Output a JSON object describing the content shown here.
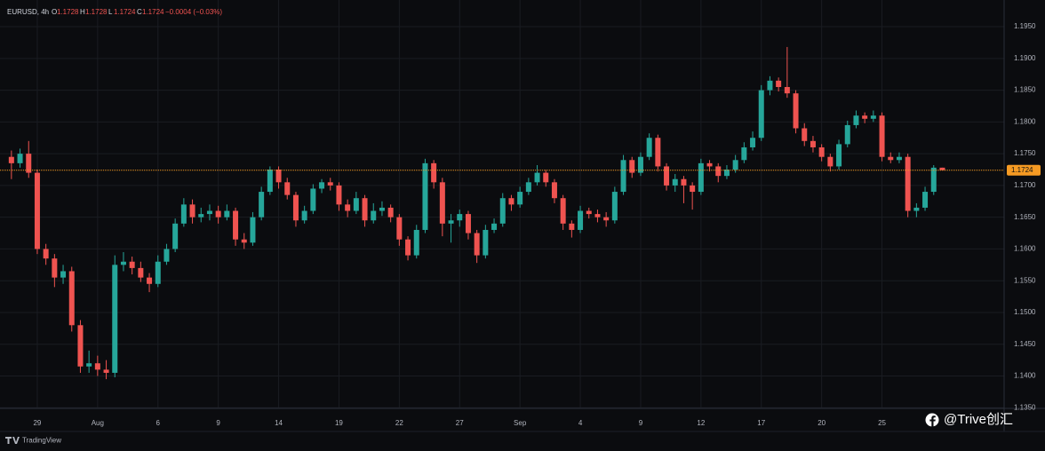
{
  "header": {
    "symbol": "EURUSD, 4h",
    "fields": [
      {
        "label": "O",
        "value": "1.1728"
      },
      {
        "label": "H",
        "value": "1.1728"
      },
      {
        "label": "L",
        "value": "1.1724"
      },
      {
        "label": "C",
        "value": "1.1724"
      }
    ],
    "change": "−0.0004 (−0.03%)"
  },
  "branding": "TradingView",
  "watermark": "@Trive创汇",
  "chart_data": {
    "type": "candlestick",
    "up_color": "#26a69a",
    "down_color": "#ef5350",
    "grid": true,
    "ylim": [
      1.1349,
      1.1992
    ],
    "yticks": [
      {
        "value": 1.195,
        "label": "1.1950"
      },
      {
        "value": 1.19,
        "label": "1.1900"
      },
      {
        "value": 1.185,
        "label": "1.1850"
      },
      {
        "value": 1.18,
        "label": "1.1800"
      },
      {
        "value": 1.175,
        "label": "1.1750"
      },
      {
        "value": 1.17,
        "label": "1.1700"
      },
      {
        "value": 1.165,
        "label": "1.1650"
      },
      {
        "value": 1.16,
        "label": "1.1600"
      },
      {
        "value": 1.155,
        "label": "1.1550"
      },
      {
        "value": 1.15,
        "label": "1.1500"
      },
      {
        "value": 1.145,
        "label": "1.1450"
      },
      {
        "value": 1.14,
        "label": "1.1400"
      },
      {
        "value": 1.135,
        "label": "1.1350"
      }
    ],
    "price_line": {
      "value": 1.1724,
      "color": "#f59a23"
    },
    "categories": [
      null,
      null,
      null,
      "29",
      null,
      null,
      null,
      null,
      null,
      null,
      "Aug",
      null,
      null,
      null,
      null,
      null,
      null,
      "6",
      null,
      null,
      null,
      null,
      null,
      null,
      "9",
      null,
      null,
      null,
      null,
      null,
      null,
      "14",
      null,
      null,
      null,
      null,
      null,
      null,
      "19",
      null,
      null,
      null,
      null,
      null,
      null,
      "22",
      null,
      null,
      null,
      null,
      null,
      null,
      "27",
      null,
      null,
      null,
      null,
      null,
      null,
      "Sep",
      null,
      null,
      null,
      null,
      null,
      null,
      "4",
      null,
      null,
      null,
      null,
      null,
      null,
      "9",
      null,
      null,
      null,
      null,
      null,
      null,
      "12",
      null,
      null,
      null,
      null,
      null,
      null,
      "17",
      null,
      null,
      null,
      null,
      null,
      null,
      "20",
      null,
      null,
      null,
      null,
      null,
      null,
      "25",
      null,
      null,
      null,
      null,
      null,
      null,
      null
    ],
    "ohlc": [
      [
        1.1745,
        1.1755,
        1.171,
        1.1735
      ],
      [
        1.1735,
        1.1758,
        1.1728,
        1.175
      ],
      [
        1.175,
        1.177,
        1.1712,
        1.172
      ],
      [
        1.172,
        1.1725,
        1.1592,
        1.16
      ],
      [
        1.16,
        1.1608,
        1.1575,
        1.1585
      ],
      [
        1.1585,
        1.1592,
        1.154,
        1.1555
      ],
      [
        1.1555,
        1.1575,
        1.1545,
        1.1565
      ],
      [
        1.1565,
        1.1572,
        1.147,
        1.148
      ],
      [
        1.148,
        1.1488,
        1.1405,
        1.1415
      ],
      [
        1.1415,
        1.144,
        1.1405,
        1.142
      ],
      [
        1.142,
        1.1432,
        1.14,
        1.141
      ],
      [
        1.141,
        1.1425,
        1.1395,
        1.1405
      ],
      [
        1.1405,
        1.159,
        1.1398,
        1.1575
      ],
      [
        1.1575,
        1.1595,
        1.1565,
        1.158
      ],
      [
        1.158,
        1.1588,
        1.156,
        1.157
      ],
      [
        1.157,
        1.158,
        1.1548,
        1.1555
      ],
      [
        1.1555,
        1.1562,
        1.1532,
        1.1545
      ],
      [
        1.1545,
        1.159,
        1.154,
        1.158
      ],
      [
        1.158,
        1.1608,
        1.1575,
        1.16
      ],
      [
        1.16,
        1.1648,
        1.1595,
        1.164
      ],
      [
        1.164,
        1.168,
        1.1635,
        1.167
      ],
      [
        1.167,
        1.1678,
        1.164,
        1.165
      ],
      [
        1.165,
        1.1665,
        1.1642,
        1.1655
      ],
      [
        1.1655,
        1.167,
        1.1645,
        1.166
      ],
      [
        1.166,
        1.1668,
        1.164,
        1.165
      ],
      [
        1.165,
        1.167,
        1.1645,
        1.166
      ],
      [
        1.166,
        1.1665,
        1.1605,
        1.1615
      ],
      [
        1.1615,
        1.1625,
        1.16,
        1.161
      ],
      [
        1.161,
        1.1658,
        1.1605,
        1.165
      ],
      [
        1.165,
        1.1698,
        1.1645,
        1.169
      ],
      [
        1.169,
        1.173,
        1.1685,
        1.1725
      ],
      [
        1.1725,
        1.173,
        1.1695,
        1.1705
      ],
      [
        1.1705,
        1.1712,
        1.1678,
        1.1685
      ],
      [
        1.1685,
        1.169,
        1.1635,
        1.1645
      ],
      [
        1.1645,
        1.1668,
        1.164,
        1.166
      ],
      [
        1.166,
        1.1702,
        1.1655,
        1.1695
      ],
      [
        1.1695,
        1.171,
        1.1688,
        1.1705
      ],
      [
        1.1705,
        1.1712,
        1.1692,
        1.17
      ],
      [
        1.17,
        1.1705,
        1.166,
        1.167
      ],
      [
        1.167,
        1.1678,
        1.165,
        1.166
      ],
      [
        1.166,
        1.169,
        1.1655,
        1.168
      ],
      [
        1.168,
        1.1685,
        1.1635,
        1.1645
      ],
      [
        1.1645,
        1.1672,
        1.164,
        1.166
      ],
      [
        1.166,
        1.1675,
        1.1652,
        1.1665
      ],
      [
        1.1665,
        1.167,
        1.1642,
        1.165
      ],
      [
        1.165,
        1.1655,
        1.1605,
        1.1615
      ],
      [
        1.1615,
        1.162,
        1.1582,
        1.159
      ],
      [
        1.159,
        1.1638,
        1.1585,
        1.163
      ],
      [
        1.163,
        1.1742,
        1.1625,
        1.1735
      ],
      [
        1.1735,
        1.174,
        1.1695,
        1.1705
      ],
      [
        1.1705,
        1.1712,
        1.162,
        1.164
      ],
      [
        1.164,
        1.1655,
        1.161,
        1.1645
      ],
      [
        1.1645,
        1.1662,
        1.1635,
        1.1655
      ],
      [
        1.1655,
        1.166,
        1.1615,
        1.1625
      ],
      [
        1.1625,
        1.163,
        1.1578,
        1.159
      ],
      [
        1.159,
        1.1638,
        1.1585,
        1.163
      ],
      [
        1.163,
        1.1648,
        1.1625,
        1.164
      ],
      [
        1.164,
        1.1688,
        1.1635,
        1.168
      ],
      [
        1.168,
        1.1685,
        1.166,
        1.167
      ],
      [
        1.167,
        1.1698,
        1.1665,
        1.169
      ],
      [
        1.169,
        1.1712,
        1.1685,
        1.1705
      ],
      [
        1.1705,
        1.1732,
        1.17,
        1.172
      ],
      [
        1.172,
        1.1725,
        1.1698,
        1.1705
      ],
      [
        1.1705,
        1.171,
        1.1672,
        1.168
      ],
      [
        1.168,
        1.1685,
        1.163,
        1.164
      ],
      [
        1.164,
        1.1645,
        1.1618,
        1.163
      ],
      [
        1.163,
        1.1668,
        1.1625,
        1.166
      ],
      [
        1.166,
        1.1665,
        1.1648,
        1.1655
      ],
      [
        1.1655,
        1.1662,
        1.1642,
        1.165
      ],
      [
        1.165,
        1.1658,
        1.1635,
        1.1645
      ],
      [
        1.1645,
        1.1698,
        1.164,
        1.169
      ],
      [
        1.169,
        1.1748,
        1.1685,
        1.174
      ],
      [
        1.174,
        1.1745,
        1.1712,
        1.172
      ],
      [
        1.172,
        1.1752,
        1.1715,
        1.1745
      ],
      [
        1.1745,
        1.1782,
        1.174,
        1.1775
      ],
      [
        1.1775,
        1.178,
        1.1722,
        1.173
      ],
      [
        1.173,
        1.1735,
        1.1692,
        1.17
      ],
      [
        1.17,
        1.1718,
        1.169,
        1.171
      ],
      [
        1.171,
        1.1715,
        1.1672,
        1.17
      ],
      [
        1.17,
        1.1705,
        1.1662,
        1.169
      ],
      [
        1.169,
        1.1742,
        1.1685,
        1.1735
      ],
      [
        1.1735,
        1.174,
        1.1722,
        1.173
      ],
      [
        1.173,
        1.1735,
        1.1705,
        1.1715
      ],
      [
        1.1715,
        1.1732,
        1.171,
        1.1725
      ],
      [
        1.1725,
        1.1748,
        1.172,
        1.174
      ],
      [
        1.174,
        1.1768,
        1.1735,
        1.176
      ],
      [
        1.176,
        1.1785,
        1.1755,
        1.1775
      ],
      [
        1.1775,
        1.1858,
        1.177,
        1.185
      ],
      [
        1.185,
        1.1872,
        1.1842,
        1.1865
      ],
      [
        1.1865,
        1.187,
        1.1848,
        1.1855
      ],
      [
        1.1855,
        1.1918,
        1.1838,
        1.1845
      ],
      [
        1.1845,
        1.185,
        1.1782,
        1.179
      ],
      [
        1.179,
        1.1798,
        1.1762,
        1.177
      ],
      [
        1.177,
        1.1778,
        1.1752,
        1.176
      ],
      [
        1.176,
        1.1765,
        1.1738,
        1.1745
      ],
      [
        1.1745,
        1.175,
        1.1722,
        1.173
      ],
      [
        1.173,
        1.1772,
        1.1725,
        1.1765
      ],
      [
        1.1765,
        1.1802,
        1.176,
        1.1795
      ],
      [
        1.1795,
        1.1818,
        1.179,
        1.181
      ],
      [
        1.181,
        1.1815,
        1.1798,
        1.1805
      ],
      [
        1.1805,
        1.1818,
        1.18,
        1.181
      ],
      [
        1.181,
        1.1815,
        1.1738,
        1.1745
      ],
      [
        1.1745,
        1.1752,
        1.1735,
        1.174
      ],
      [
        1.174,
        1.1752,
        1.1735,
        1.1745
      ],
      [
        1.1745,
        1.175,
        1.165,
        1.166
      ],
      [
        1.166,
        1.1672,
        1.165,
        1.1665
      ],
      [
        1.1665,
        1.1698,
        1.166,
        1.169
      ],
      [
        1.169,
        1.1732,
        1.1685,
        1.1728
      ],
      [
        1.1728,
        1.1728,
        1.1724,
        1.1724
      ]
    ]
  }
}
